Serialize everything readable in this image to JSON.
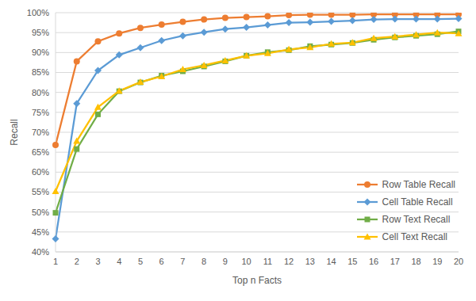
{
  "chart_data": {
    "type": "line",
    "x_label": "Top n Facts",
    "y_label": "Recall",
    "categories": [
      "1",
      "2",
      "3",
      "4",
      "5",
      "6",
      "7",
      "8",
      "9",
      "10",
      "11",
      "12",
      "13",
      "14",
      "15",
      "16",
      "17",
      "18",
      "19",
      "20"
    ],
    "ylim": [
      40,
      100
    ],
    "yticks": [
      {
        "value": 40,
        "label": "40%"
      },
      {
        "value": 45,
        "label": "45%"
      },
      {
        "value": 50,
        "label": "50%"
      },
      {
        "value": 55,
        "label": "55%"
      },
      {
        "value": 60,
        "label": "60%"
      },
      {
        "value": 65,
        "label": "65%"
      },
      {
        "value": 70,
        "label": "70%"
      },
      {
        "value": 75,
        "label": "75%"
      },
      {
        "value": 80,
        "label": "80%"
      },
      {
        "value": 85,
        "label": "85%"
      },
      {
        "value": 90,
        "label": "90%"
      },
      {
        "value": 95,
        "label": "95%"
      },
      {
        "value": 100,
        "label": "100%"
      }
    ],
    "grid": true,
    "legend": "bottom right",
    "series": [
      {
        "name": "Row Table Recall",
        "color": "#ed7d31",
        "marker": "circle",
        "values": [
          66.8,
          87.8,
          92.8,
          94.8,
          96.2,
          97.0,
          97.7,
          98.3,
          98.7,
          98.9,
          99.1,
          99.4,
          99.5,
          99.5,
          99.5,
          99.6,
          99.6,
          99.6,
          99.6,
          99.6
        ]
      },
      {
        "name": "Cell Table Recall",
        "color": "#5b9bd5",
        "marker": "diamond",
        "values": [
          43.3,
          77.2,
          85.5,
          89.4,
          91.2,
          93.0,
          94.2,
          95.1,
          95.9,
          96.3,
          96.9,
          97.5,
          97.6,
          97.8,
          98.0,
          98.3,
          98.4,
          98.4,
          98.4,
          98.5
        ]
      },
      {
        "name": "Row Text Recall",
        "color": "#70ad47",
        "marker": "square",
        "values": [
          49.8,
          65.8,
          74.5,
          80.3,
          82.5,
          84.2,
          85.3,
          86.5,
          87.8,
          89.2,
          90.1,
          90.6,
          91.6,
          92.0,
          92.4,
          93.2,
          93.8,
          94.2,
          94.6,
          95.3
        ]
      },
      {
        "name": "Cell Text Recall",
        "color": "#ffc000",
        "marker": "triangle",
        "values": [
          55.2,
          67.8,
          76.3,
          80.4,
          82.6,
          84.0,
          85.8,
          86.8,
          88.0,
          89.2,
          89.8,
          90.8,
          91.3,
          92.2,
          92.5,
          93.6,
          94.0,
          94.5,
          95.0,
          94.8
        ]
      }
    ]
  }
}
